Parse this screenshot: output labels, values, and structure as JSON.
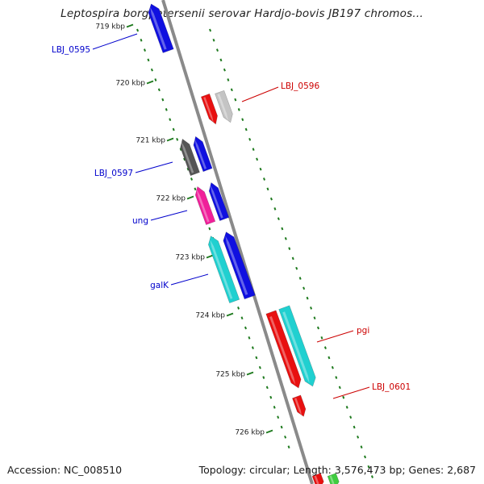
{
  "title": "Leptospira borgpetersenii serovar Hardjo-bovis JB197 chromos...",
  "footer": {
    "accession": "Accession: NC_008510",
    "summary": "Topology: circular; Length: 3,576,473 bp; Genes: 2,687"
  },
  "colors": {
    "backbone": "#8a8a8a",
    "ticks": "#1e7a1e",
    "forward_label": "#0000cc",
    "reverse_label": "#cc0000"
  },
  "kbp_labels": [
    "719 kbp",
    "720 kbp",
    "721 kbp",
    "722 kbp",
    "723 kbp",
    "724 kbp",
    "725 kbp",
    "726 kbp"
  ],
  "genes": [
    {
      "label": "LBJ_0595",
      "strand": "forward",
      "color": "#1010e0"
    },
    {
      "label": "LBJ_0596",
      "strand": "reverse",
      "color": "#e81010"
    },
    {
      "label": "",
      "strand": "reverse",
      "color": "#c4c4c4"
    },
    {
      "label": "",
      "strand": "forward",
      "color": "#555555"
    },
    {
      "label": "LBJ_0597",
      "strand": "forward",
      "color": "#1010e0"
    },
    {
      "label": "ung",
      "strand": "forward",
      "color": "#f0209a"
    },
    {
      "label": "",
      "strand": "forward",
      "color": "#1010e0"
    },
    {
      "label": "galK",
      "strand": "forward",
      "color": "#20d0d0"
    },
    {
      "label": "",
      "strand": "forward",
      "color": "#1010e0"
    },
    {
      "label": "pgi",
      "strand": "reverse",
      "color": "#e81010"
    },
    {
      "label": "",
      "strand": "reverse",
      "color": "#20d0d0"
    },
    {
      "label": "LBJ_0601",
      "strand": "reverse",
      "color": "#e81010"
    },
    {
      "label": "",
      "strand": "reverse",
      "color": "#e81010"
    },
    {
      "label": "",
      "strand": "reverse",
      "color": "#40cc40"
    }
  ]
}
